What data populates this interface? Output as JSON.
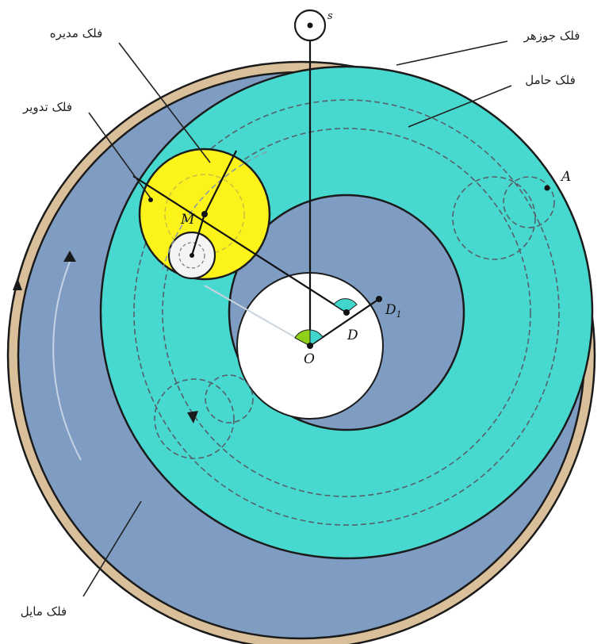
{
  "labels": {
    "falak_mudir": "فلک مدیره",
    "falak_jawzahar": "فلک جوزهر",
    "falak_hamil": "فلک حامل",
    "falak_tadwir": "فلک تدویر",
    "falak_mail": "فلک مایل"
  },
  "points": {
    "s": "s",
    "A": "A",
    "M": "M",
    "D": "D",
    "D1": "D",
    "D1_sub": "1",
    "O": "O"
  },
  "colors": {
    "jawzahar_ring": "#d9bf9a",
    "mail_ring": "#7f9dc3",
    "hamil_ring": "#47d9cf",
    "center_disc": "#ffffff",
    "epicycle": "#fbf31a",
    "angle_green": "#8fd11a",
    "angle_cyan": "#40d6cb",
    "outline": "#1b1b1b"
  }
}
